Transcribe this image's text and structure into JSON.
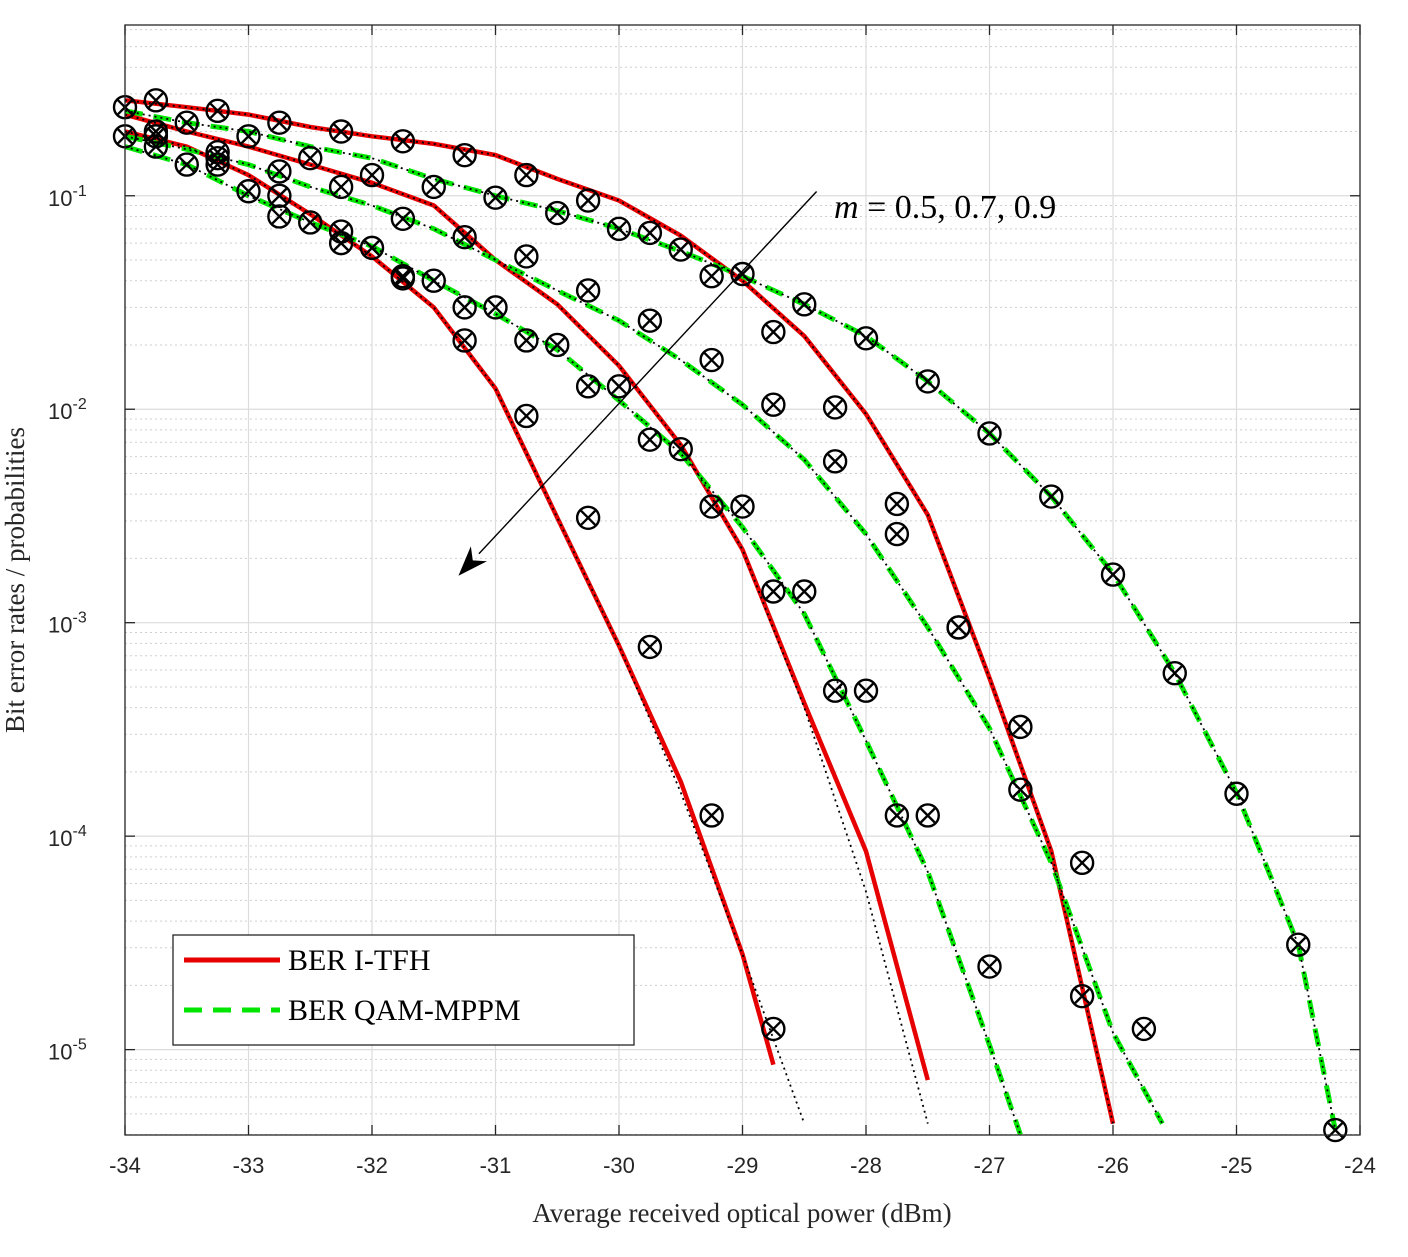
{
  "chart_data": {
    "type": "line",
    "xlabel": "Average received optical power (dBm)",
    "ylabel": "Bit error rates / probabilities",
    "xlim": [
      -34,
      -24
    ],
    "ylim_log10": [
      -5.4,
      -0.2
    ],
    "yscale": "log",
    "grid": true,
    "minor_grid": true,
    "xticks": [
      -34,
      -33,
      -32,
      -31,
      -30,
      -29,
      -28,
      -27,
      -26,
      -25,
      -24
    ],
    "yticks": [
      {
        "exp": -1,
        "base": "10",
        "sup": "-1"
      },
      {
        "exp": -2,
        "base": "10",
        "sup": "-2"
      },
      {
        "exp": -3,
        "base": "10",
        "sup": "-3"
      },
      {
        "exp": -4,
        "base": "10",
        "sup": "-4"
      },
      {
        "exp": -5,
        "base": "10",
        "sup": "-5"
      }
    ],
    "legend": {
      "placement": "bottom-left",
      "entries": [
        {
          "label": "BER I-TFH",
          "color": "#e60000",
          "style": "solid"
        },
        {
          "label": "BER QAM-MPPM",
          "color": "#00e600",
          "style": "dashed"
        }
      ]
    },
    "annotation": {
      "text_italic": "m",
      "text_rest": " = 0.5, 0.7, 0.9",
      "arrow_from": {
        "x": -28.4,
        "y_log10": -0.98
      },
      "arrow_to": {
        "x": -31.3,
        "y_log10": -2.78
      }
    },
    "colors": {
      "ber_itfh": "#e60000",
      "ber_qam": "#00e600",
      "markers": "#000000"
    },
    "series": [
      {
        "group": "I-TFH",
        "m": 0.5,
        "kind": "BER",
        "style": "solid-red",
        "x": [
          -34,
          -33.5,
          -33,
          -32.5,
          -32,
          -31.5,
          -31,
          -30.5,
          -30,
          -29.5,
          -29,
          -28.75
        ],
        "y": [
          0.2,
          0.17,
          0.125,
          0.082,
          0.052,
          0.03,
          0.0125,
          0.0031,
          0.00078,
          0.00018,
          2.8e-05,
          8.5e-06
        ]
      },
      {
        "group": "I-TFH",
        "m": 0.5,
        "kind": "probability",
        "style": "dotted-black",
        "x": [
          -34,
          -33.5,
          -33,
          -32.5,
          -32,
          -31.5,
          -31,
          -30.5,
          -30,
          -29.5,
          -29,
          -28.5
        ],
        "y": [
          0.2,
          0.17,
          0.125,
          0.082,
          0.052,
          0.03,
          0.0125,
          0.0031,
          0.00078,
          0.00016,
          2.8e-05,
          4.5e-06
        ]
      },
      {
        "group": "I-TFH",
        "m": 0.5,
        "kind": "markers",
        "x": [
          -33.75,
          -33.25,
          -32.75,
          -32.25,
          -31.75,
          -31.25,
          -30.75,
          -30.25,
          -29.75,
          -29.25,
          -28.75
        ],
        "y": [
          0.19,
          0.14,
          0.08,
          0.06,
          0.041,
          0.021,
          0.0093,
          0.0031,
          0.00077,
          0.000125,
          1.25e-05
        ]
      },
      {
        "group": "I-TFH",
        "m": 0.7,
        "kind": "BER",
        "style": "solid-red",
        "x": [
          -34,
          -33.5,
          -33,
          -32.5,
          -32,
          -31.5,
          -31,
          -30.5,
          -30,
          -29.5,
          -29,
          -28.5,
          -28,
          -27.5
        ],
        "y": [
          0.24,
          0.2,
          0.17,
          0.14,
          0.115,
          0.09,
          0.05,
          0.031,
          0.016,
          0.0068,
          0.0022,
          0.00042,
          8.5e-05,
          7.2e-06
        ]
      },
      {
        "group": "I-TFH",
        "m": 0.7,
        "kind": "probability",
        "style": "dotted-black",
        "x": [
          -34,
          -33.5,
          -33,
          -32.5,
          -32,
          -31.5,
          -31,
          -30.5,
          -30,
          -29.5,
          -29,
          -28.5,
          -28,
          -27.5
        ],
        "y": [
          0.24,
          0.2,
          0.17,
          0.14,
          0.115,
          0.09,
          0.05,
          0.031,
          0.016,
          0.0068,
          0.0022,
          0.0004,
          5.5e-05,
          4.5e-06
        ]
      },
      {
        "group": "I-TFH",
        "m": 0.7,
        "kind": "markers",
        "x": [
          -33.75,
          -33.25,
          -32.75,
          -32.25,
          -31.75,
          -31.25,
          -30.75,
          -30.25,
          -29.75,
          -29.25,
          -28.75,
          -28.25,
          -27.75
        ],
        "y": [
          0.17,
          0.15,
          0.1,
          0.068,
          0.042,
          0.03,
          0.021,
          0.0128,
          0.0072,
          0.0035,
          0.0014,
          0.00048,
          0.000125
        ]
      },
      {
        "group": "I-TFH",
        "m": 0.9,
        "kind": "BER",
        "style": "solid-red",
        "x": [
          -34,
          -33.5,
          -33,
          -32.5,
          -32,
          -31.5,
          -31,
          -30.5,
          -30,
          -29.5,
          -29,
          -28.5,
          -28,
          -27.5,
          -27,
          -26.5,
          -26
        ],
        "y": [
          0.28,
          0.26,
          0.24,
          0.21,
          0.19,
          0.175,
          0.155,
          0.12,
          0.095,
          0.065,
          0.04,
          0.022,
          0.0095,
          0.0032,
          0.00055,
          8.5e-05,
          4.5e-06
        ]
      },
      {
        "group": "I-TFH",
        "m": 0.9,
        "kind": "probability",
        "style": "dotted-black",
        "x": [
          -34,
          -33.5,
          -33,
          -32.5,
          -32,
          -31.5,
          -31,
          -30.5,
          -30,
          -29.5,
          -29,
          -28.5,
          -28,
          -27.5,
          -27,
          -26.5,
          -26
        ],
        "y": [
          0.28,
          0.26,
          0.24,
          0.21,
          0.19,
          0.175,
          0.155,
          0.12,
          0.095,
          0.065,
          0.04,
          0.022,
          0.0095,
          0.0032,
          0.00055,
          8.5e-05,
          4.5e-06
        ]
      },
      {
        "group": "I-TFH",
        "m": 0.9,
        "kind": "markers",
        "x": [
          -33.75,
          -33.25,
          -32.75,
          -32.25,
          -31.75,
          -31.25,
          -30.75,
          -30.25,
          -29.75,
          -29.25,
          -28.75,
          -28.25,
          -27.75,
          -27.25,
          -26.75,
          -26.25
        ],
        "y": [
          0.28,
          0.25,
          0.22,
          0.2,
          0.18,
          0.155,
          0.125,
          0.095,
          0.067,
          0.042,
          0.023,
          0.0102,
          0.0036,
          0.00095,
          0.000165,
          1.78e-05
        ]
      },
      {
        "group": "QAM-MPPM",
        "m": 0.5,
        "kind": "BER",
        "style": "dashed-green",
        "x": [
          -34,
          -33.5,
          -33,
          -32.5,
          -32,
          -31.5,
          -31,
          -30.5,
          -30,
          -29.5,
          -29,
          -28.5,
          -28,
          -27.5,
          -27,
          -26.75
        ],
        "y": [
          0.17,
          0.14,
          0.1,
          0.075,
          0.058,
          0.04,
          0.028,
          0.019,
          0.011,
          0.0062,
          0.0028,
          0.0011,
          0.00028,
          6.8e-05,
          1.05e-05,
          4e-06
        ]
      },
      {
        "group": "QAM-MPPM",
        "m": 0.5,
        "kind": "probability",
        "style": "dotted-black",
        "x": [
          -34,
          -33.5,
          -33,
          -32.5,
          -32,
          -31.5,
          -31,
          -30.5,
          -30,
          -29.5,
          -29,
          -28.5,
          -28,
          -27.5,
          -27,
          -26.75
        ],
        "y": [
          0.17,
          0.14,
          0.1,
          0.075,
          0.058,
          0.04,
          0.028,
          0.019,
          0.011,
          0.0062,
          0.0028,
          0.0011,
          0.00028,
          6.8e-05,
          1.05e-05,
          4e-06
        ]
      },
      {
        "group": "QAM-MPPM",
        "m": 0.5,
        "kind": "markers",
        "x": [
          -34,
          -33.5,
          -33,
          -32.5,
          -32,
          -31.5,
          -31,
          -30.5,
          -30,
          -29.5,
          -29,
          -28.5,
          -28,
          -27.5,
          -27
        ],
        "y": [
          0.19,
          0.14,
          0.105,
          0.075,
          0.057,
          0.04,
          0.03,
          0.02,
          0.0128,
          0.0065,
          0.0035,
          0.0014,
          0.00048,
          0.000125,
          2.45e-05
        ]
      },
      {
        "group": "QAM-MPPM",
        "m": 0.7,
        "kind": "BER",
        "style": "dashed-green",
        "x": [
          -34,
          -33.5,
          -33,
          -32.5,
          -32,
          -31.5,
          -31,
          -30.5,
          -30,
          -29.5,
          -29,
          -28.5,
          -28,
          -27.5,
          -27,
          -26.5,
          -26,
          -25.6
        ],
        "y": [
          0.19,
          0.165,
          0.14,
          0.11,
          0.09,
          0.07,
          0.05,
          0.036,
          0.026,
          0.017,
          0.0105,
          0.0058,
          0.0026,
          0.00095,
          0.00032,
          7.5e-05,
          1.2e-05,
          4.5e-06
        ]
      },
      {
        "group": "QAM-MPPM",
        "m": 0.7,
        "kind": "probability",
        "style": "dotted-black",
        "x": [
          -34,
          -33.5,
          -33,
          -32.5,
          -32,
          -31.5,
          -31,
          -30.5,
          -30,
          -29.5,
          -29,
          -28.5,
          -28,
          -27.5,
          -27,
          -26.5,
          -26,
          -25.6
        ],
        "y": [
          0.19,
          0.165,
          0.14,
          0.11,
          0.09,
          0.07,
          0.05,
          0.036,
          0.026,
          0.017,
          0.0105,
          0.0058,
          0.0026,
          0.00095,
          0.00032,
          7.5e-05,
          1.2e-05,
          4.5e-06
        ]
      },
      {
        "group": "QAM-MPPM",
        "m": 0.7,
        "kind": "markers",
        "x": [
          -33.75,
          -33.25,
          -32.75,
          -32.25,
          -31.75,
          -31.25,
          -30.75,
          -30.25,
          -29.75,
          -29.25,
          -28.75,
          -28.25,
          -27.75,
          -27.25,
          -26.75,
          -26.25,
          -25.75
        ],
        "y": [
          0.2,
          0.16,
          0.13,
          0.11,
          0.078,
          0.064,
          0.052,
          0.036,
          0.026,
          0.017,
          0.0105,
          0.0057,
          0.0026,
          0.00095,
          0.000325,
          7.5e-05,
          1.25e-05
        ]
      },
      {
        "group": "QAM-MPPM",
        "m": 0.9,
        "kind": "BER",
        "style": "dashed-green",
        "x": [
          -34,
          -33.5,
          -33,
          -32.5,
          -32,
          -31.5,
          -31,
          -30.5,
          -30,
          -29.5,
          -29,
          -28.5,
          -28,
          -27.5,
          -27,
          -26.5,
          -26,
          -25.5,
          -25,
          -24.5,
          -24.2
        ],
        "y": [
          0.25,
          0.22,
          0.2,
          0.17,
          0.15,
          0.12,
          0.1,
          0.085,
          0.07,
          0.055,
          0.042,
          0.031,
          0.022,
          0.0135,
          0.0077,
          0.0039,
          0.0017,
          0.00058,
          0.00016,
          3.1e-05,
          4.2e-06
        ]
      },
      {
        "group": "QAM-MPPM",
        "m": 0.9,
        "kind": "probability",
        "style": "dotted-black",
        "x": [
          -34,
          -33.5,
          -33,
          -32.5,
          -32,
          -31.5,
          -31,
          -30.5,
          -30,
          -29.5,
          -29,
          -28.5,
          -28,
          -27.5,
          -27,
          -26.5,
          -26,
          -25.5,
          -25,
          -24.5,
          -24.2
        ],
        "y": [
          0.25,
          0.22,
          0.2,
          0.17,
          0.15,
          0.12,
          0.1,
          0.085,
          0.07,
          0.055,
          0.042,
          0.031,
          0.022,
          0.0135,
          0.0077,
          0.0039,
          0.0017,
          0.00058,
          0.00016,
          3.1e-05,
          4.2e-06
        ]
      },
      {
        "group": "QAM-MPPM",
        "m": 0.9,
        "kind": "markers",
        "x": [
          -34,
          -33.5,
          -33,
          -32.5,
          -32,
          -31.5,
          -31,
          -30.5,
          -30,
          -29.5,
          -29,
          -28.5,
          -28,
          -27.5,
          -27,
          -26.5,
          -26,
          -25.5,
          -25,
          -24.5,
          -24.2
        ],
        "y": [
          0.26,
          0.22,
          0.19,
          0.15,
          0.125,
          0.11,
          0.098,
          0.083,
          0.07,
          0.056,
          0.043,
          0.031,
          0.0215,
          0.0135,
          0.0077,
          0.0039,
          0.00168,
          0.00058,
          0.000158,
          3.1e-05,
          4.2e-06
        ]
      }
    ]
  }
}
